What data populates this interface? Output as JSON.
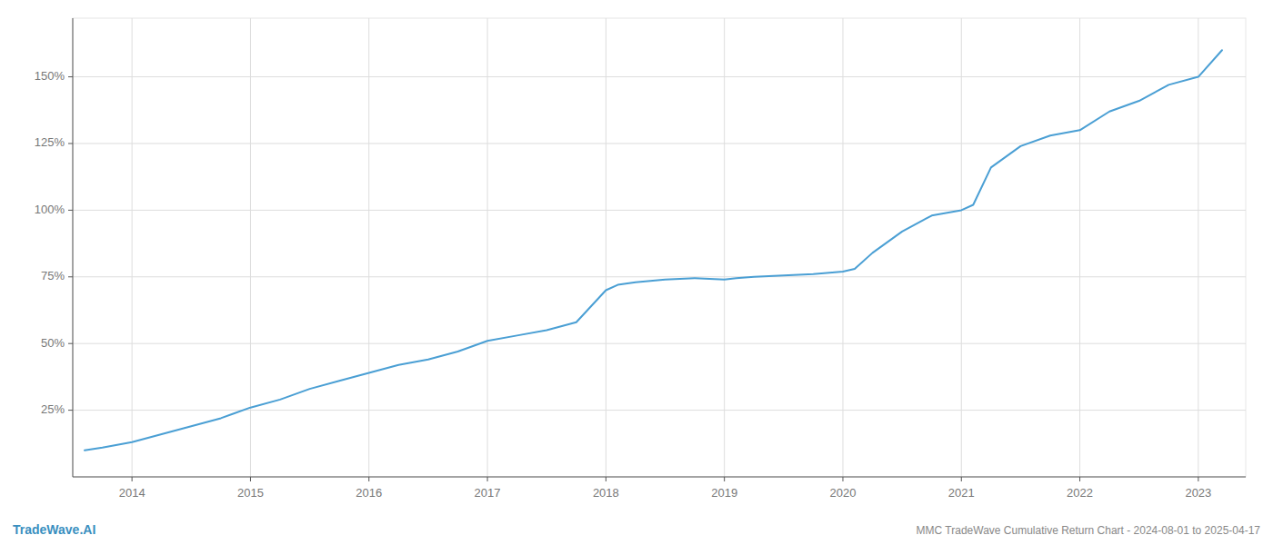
{
  "chart_data": {
    "type": "line",
    "title": "MMC TradeWave Cumulative Return Chart - 2024-08-01 to 2025-04-17",
    "annotations": [
      "TradeWave.AI"
    ],
    "color": "#4a9fd4",
    "grid": true,
    "x": [
      2013.6,
      2013.75,
      2014.0,
      2014.25,
      2014.5,
      2014.75,
      2015.0,
      2015.25,
      2015.5,
      2015.75,
      2016.0,
      2016.25,
      2016.5,
      2016.75,
      2017.0,
      2017.25,
      2017.5,
      2017.75,
      2018.0,
      2018.1,
      2018.25,
      2018.5,
      2018.75,
      2019.0,
      2019.1,
      2019.25,
      2019.5,
      2019.75,
      2020.0,
      2020.1,
      2020.25,
      2020.5,
      2020.75,
      2021.0,
      2021.1,
      2021.25,
      2021.5,
      2021.75,
      2022.0,
      2022.25,
      2022.5,
      2022.75,
      2023.0,
      2023.2
    ],
    "values": [
      10,
      11,
      13,
      16,
      19,
      22,
      26,
      29,
      33,
      36,
      39,
      42,
      44,
      47,
      51,
      53,
      55,
      58,
      70,
      72,
      73,
      74,
      74.5,
      74,
      74.5,
      75,
      75.5,
      76,
      77,
      78,
      84,
      92,
      98,
      100,
      102,
      116,
      124,
      128,
      130,
      137,
      141,
      147,
      150,
      160
    ],
    "xlim": [
      2013.5,
      2023.4
    ],
    "xticks": [
      2014,
      2015,
      2016,
      2017,
      2018,
      2019,
      2020,
      2021,
      2022,
      2023
    ],
    "ylim": [
      0,
      172
    ],
    "yticks": [
      {
        "value": 25,
        "label": "25%"
      },
      {
        "value": 50,
        "label": "50%"
      },
      {
        "value": 75,
        "label": "75%"
      },
      {
        "value": 100,
        "label": "100%"
      },
      {
        "value": 125,
        "label": "125%"
      },
      {
        "value": 150,
        "label": "150%"
      }
    ]
  }
}
